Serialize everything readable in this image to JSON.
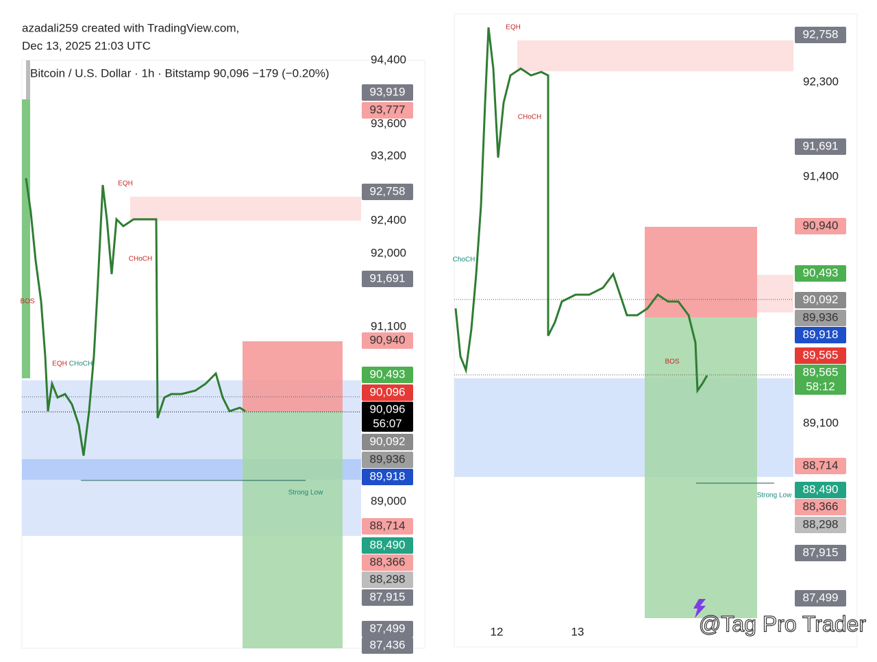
{
  "header": {
    "author": "azadali259 created with TradingView.com,",
    "date": "Dec 13, 2025 21:03 UTC",
    "symbol": "Bitcoin / U.S. Dollar · 1h · Bitstamp  90,096  −179 (−0.20%)"
  },
  "left_panel": {
    "axis_labels": [
      "94,400",
      "93,600",
      "93,200",
      "92,400",
      "92,000",
      "91,100",
      "89,000"
    ],
    "price_tags": [
      {
        "label": "93,919",
        "color": "#787b86"
      },
      {
        "label": "93,777",
        "color": "#f7a1a1"
      },
      {
        "label": "92,758",
        "color": "#787b86"
      },
      {
        "label": "91,691",
        "color": "#787b86"
      },
      {
        "label": "90,940",
        "color": "#f7a1a1"
      },
      {
        "label": "90,493",
        "color": "#4caf50"
      },
      {
        "label": "90,096",
        "color": "#e53935"
      },
      {
        "label": "90,096",
        "timer": "56:07",
        "color": "#000000"
      },
      {
        "label": "90,092",
        "color": "#8a8a8a"
      },
      {
        "label": "89,936",
        "color": "#9e9e9e"
      },
      {
        "label": "89,918",
        "color": "#1e4fc8"
      },
      {
        "label": "88,714",
        "color": "#f7a1a1"
      },
      {
        "label": "88,490",
        "color": "#22a383"
      },
      {
        "label": "88,366",
        "color": "#f7a1a1"
      },
      {
        "label": "88,298",
        "color": "#bdbdbd"
      },
      {
        "label": "87,915",
        "color": "#787b86"
      },
      {
        "label": "87,499",
        "color": "#787b86"
      },
      {
        "label": "87,436",
        "color": "#787b86"
      }
    ],
    "annotations": [
      "EQH",
      "CHoCH",
      "EQH",
      "CHoCH",
      "BOS",
      "Strong Low"
    ]
  },
  "right_panel": {
    "axis_labels": [
      "92,300",
      "91,400",
      "89,100"
    ],
    "time_labels": [
      "12",
      "13"
    ],
    "price_tags": [
      {
        "label": "92,758",
        "color": "#787b86"
      },
      {
        "label": "91,691",
        "color": "#787b86"
      },
      {
        "label": "90,940",
        "color": "#f7a1a1"
      },
      {
        "label": "90,493",
        "color": "#4caf50"
      },
      {
        "label": "90,092",
        "color": "#8a8a8a"
      },
      {
        "label": "89,936",
        "color": "#9e9e9e"
      },
      {
        "label": "89,918",
        "color": "#1e4fc8"
      },
      {
        "label": "89,565",
        "color": "#e53935"
      },
      {
        "label": "89,565",
        "timer": "58:12",
        "color": "#4caf50"
      },
      {
        "label": "88,714",
        "color": "#f7a1a1"
      },
      {
        "label": "88,490",
        "color": "#22a383"
      },
      {
        "label": "88,366",
        "color": "#f7a1a1"
      },
      {
        "label": "88,298",
        "color": "#bdbdbd"
      },
      {
        "label": "87,915",
        "color": "#787b86"
      },
      {
        "label": "87,499",
        "color": "#787b86"
      }
    ],
    "annotations": [
      "EQH",
      "CHoCH",
      "ChoCH",
      "BOS",
      "Strong Low"
    ]
  },
  "watermark": "@Tag Pro Trader"
}
